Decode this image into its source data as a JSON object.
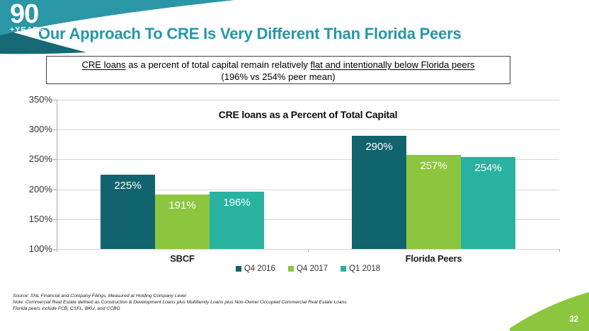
{
  "slide": {
    "logo": {
      "number": "90",
      "caption": "+YEARS"
    },
    "title": "Our Approach To CRE Is Very Different Than Florida Peers",
    "callout": {
      "line1_parts": [
        {
          "text": "CRE loans",
          "underline": true
        },
        {
          "text": " as a percent of total capital remain relatively ",
          "underline": false
        },
        {
          "text": "flat and intentionally below Florida peers",
          "underline": true
        }
      ],
      "line2": "(196% vs 254% peer mean)"
    },
    "footnotes": [
      "Source: SNL Financial and Company Filings, Measured at Holding Company Level",
      "Note: Commercial Real Estate defined as Construction & Development Loans plus Multifamily Loans plus Non-Owner Occupied Commercial Real Estate Loans",
      "Florida peers include FCB, CSFL, BKU, and CCBG"
    ],
    "page_number": "32"
  },
  "chart_data": {
    "type": "bar",
    "title": "CRE loans as a Percent of Total Capital",
    "categories": [
      "SBCF",
      "Florida Peers"
    ],
    "series": [
      {
        "name": "Q4 2016",
        "color": "#11636e",
        "values": [
          225,
          290
        ]
      },
      {
        "name": "Q4 2017",
        "color": "#8cc63f",
        "values": [
          191,
          257
        ]
      },
      {
        "name": "Q1 2018",
        "color": "#29b2a0",
        "values": [
          196,
          254
        ]
      }
    ],
    "value_suffix": "%",
    "ylim": [
      100,
      350
    ],
    "yticks": [
      350,
      300,
      250,
      200,
      150,
      100
    ],
    "ytick_suffix": "%",
    "grid": true,
    "legend_position": "bottom"
  },
  "colors": {
    "brand_teal": "#2b96a5",
    "brand_teal_dark": "#156a76",
    "title_teal": "#2397a9",
    "accent_green": "#8cc63f",
    "gridline": "#d6d6d6",
    "axis": "#a9a9a9"
  }
}
